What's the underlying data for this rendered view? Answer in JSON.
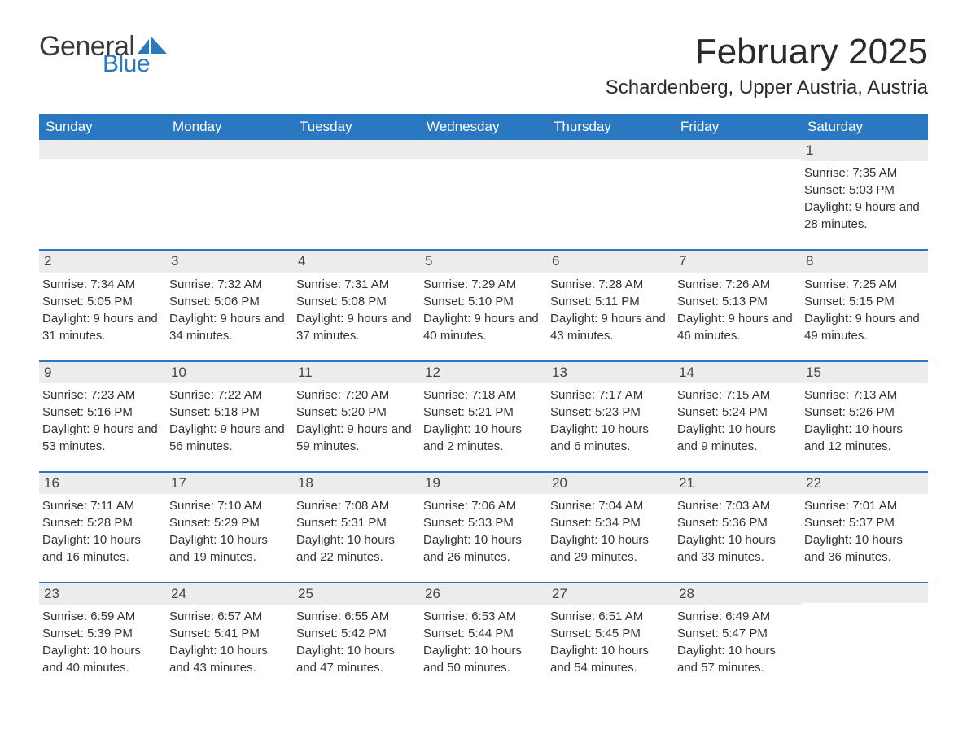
{
  "logo": {
    "word1": "General",
    "word2": "Blue",
    "word1_color": "#3a3a3a",
    "word2_color": "#2b78c2"
  },
  "title": "February 2025",
  "location": "Schardenberg, Upper Austria, Austria",
  "colors": {
    "header_bg": "#2b78c2",
    "header_text": "#ffffff",
    "daynum_bg": "#ececec",
    "week_border": "#2b78c2",
    "body_text": "#333333",
    "page_bg": "#ffffff"
  },
  "day_headers": [
    "Sunday",
    "Monday",
    "Tuesday",
    "Wednesday",
    "Thursday",
    "Friday",
    "Saturday"
  ],
  "weeks": [
    [
      null,
      null,
      null,
      null,
      null,
      null,
      {
        "n": "1",
        "sunrise": "Sunrise: 7:35 AM",
        "sunset": "Sunset: 5:03 PM",
        "daylight": "Daylight: 9 hours and 28 minutes."
      }
    ],
    [
      {
        "n": "2",
        "sunrise": "Sunrise: 7:34 AM",
        "sunset": "Sunset: 5:05 PM",
        "daylight": "Daylight: 9 hours and 31 minutes."
      },
      {
        "n": "3",
        "sunrise": "Sunrise: 7:32 AM",
        "sunset": "Sunset: 5:06 PM",
        "daylight": "Daylight: 9 hours and 34 minutes."
      },
      {
        "n": "4",
        "sunrise": "Sunrise: 7:31 AM",
        "sunset": "Sunset: 5:08 PM",
        "daylight": "Daylight: 9 hours and 37 minutes."
      },
      {
        "n": "5",
        "sunrise": "Sunrise: 7:29 AM",
        "sunset": "Sunset: 5:10 PM",
        "daylight": "Daylight: 9 hours and 40 minutes."
      },
      {
        "n": "6",
        "sunrise": "Sunrise: 7:28 AM",
        "sunset": "Sunset: 5:11 PM",
        "daylight": "Daylight: 9 hours and 43 minutes."
      },
      {
        "n": "7",
        "sunrise": "Sunrise: 7:26 AM",
        "sunset": "Sunset: 5:13 PM",
        "daylight": "Daylight: 9 hours and 46 minutes."
      },
      {
        "n": "8",
        "sunrise": "Sunrise: 7:25 AM",
        "sunset": "Sunset: 5:15 PM",
        "daylight": "Daylight: 9 hours and 49 minutes."
      }
    ],
    [
      {
        "n": "9",
        "sunrise": "Sunrise: 7:23 AM",
        "sunset": "Sunset: 5:16 PM",
        "daylight": "Daylight: 9 hours and 53 minutes."
      },
      {
        "n": "10",
        "sunrise": "Sunrise: 7:22 AM",
        "sunset": "Sunset: 5:18 PM",
        "daylight": "Daylight: 9 hours and 56 minutes."
      },
      {
        "n": "11",
        "sunrise": "Sunrise: 7:20 AM",
        "sunset": "Sunset: 5:20 PM",
        "daylight": "Daylight: 9 hours and 59 minutes."
      },
      {
        "n": "12",
        "sunrise": "Sunrise: 7:18 AM",
        "sunset": "Sunset: 5:21 PM",
        "daylight": "Daylight: 10 hours and 2 minutes."
      },
      {
        "n": "13",
        "sunrise": "Sunrise: 7:17 AM",
        "sunset": "Sunset: 5:23 PM",
        "daylight": "Daylight: 10 hours and 6 minutes."
      },
      {
        "n": "14",
        "sunrise": "Sunrise: 7:15 AM",
        "sunset": "Sunset: 5:24 PM",
        "daylight": "Daylight: 10 hours and 9 minutes."
      },
      {
        "n": "15",
        "sunrise": "Sunrise: 7:13 AM",
        "sunset": "Sunset: 5:26 PM",
        "daylight": "Daylight: 10 hours and 12 minutes."
      }
    ],
    [
      {
        "n": "16",
        "sunrise": "Sunrise: 7:11 AM",
        "sunset": "Sunset: 5:28 PM",
        "daylight": "Daylight: 10 hours and 16 minutes."
      },
      {
        "n": "17",
        "sunrise": "Sunrise: 7:10 AM",
        "sunset": "Sunset: 5:29 PM",
        "daylight": "Daylight: 10 hours and 19 minutes."
      },
      {
        "n": "18",
        "sunrise": "Sunrise: 7:08 AM",
        "sunset": "Sunset: 5:31 PM",
        "daylight": "Daylight: 10 hours and 22 minutes."
      },
      {
        "n": "19",
        "sunrise": "Sunrise: 7:06 AM",
        "sunset": "Sunset: 5:33 PM",
        "daylight": "Daylight: 10 hours and 26 minutes."
      },
      {
        "n": "20",
        "sunrise": "Sunrise: 7:04 AM",
        "sunset": "Sunset: 5:34 PM",
        "daylight": "Daylight: 10 hours and 29 minutes."
      },
      {
        "n": "21",
        "sunrise": "Sunrise: 7:03 AM",
        "sunset": "Sunset: 5:36 PM",
        "daylight": "Daylight: 10 hours and 33 minutes."
      },
      {
        "n": "22",
        "sunrise": "Sunrise: 7:01 AM",
        "sunset": "Sunset: 5:37 PM",
        "daylight": "Daylight: 10 hours and 36 minutes."
      }
    ],
    [
      {
        "n": "23",
        "sunrise": "Sunrise: 6:59 AM",
        "sunset": "Sunset: 5:39 PM",
        "daylight": "Daylight: 10 hours and 40 minutes."
      },
      {
        "n": "24",
        "sunrise": "Sunrise: 6:57 AM",
        "sunset": "Sunset: 5:41 PM",
        "daylight": "Daylight: 10 hours and 43 minutes."
      },
      {
        "n": "25",
        "sunrise": "Sunrise: 6:55 AM",
        "sunset": "Sunset: 5:42 PM",
        "daylight": "Daylight: 10 hours and 47 minutes."
      },
      {
        "n": "26",
        "sunrise": "Sunrise: 6:53 AM",
        "sunset": "Sunset: 5:44 PM",
        "daylight": "Daylight: 10 hours and 50 minutes."
      },
      {
        "n": "27",
        "sunrise": "Sunrise: 6:51 AM",
        "sunset": "Sunset: 5:45 PM",
        "daylight": "Daylight: 10 hours and 54 minutes."
      },
      {
        "n": "28",
        "sunrise": "Sunrise: 6:49 AM",
        "sunset": "Sunset: 5:47 PM",
        "daylight": "Daylight: 10 hours and 57 minutes."
      },
      null
    ]
  ]
}
